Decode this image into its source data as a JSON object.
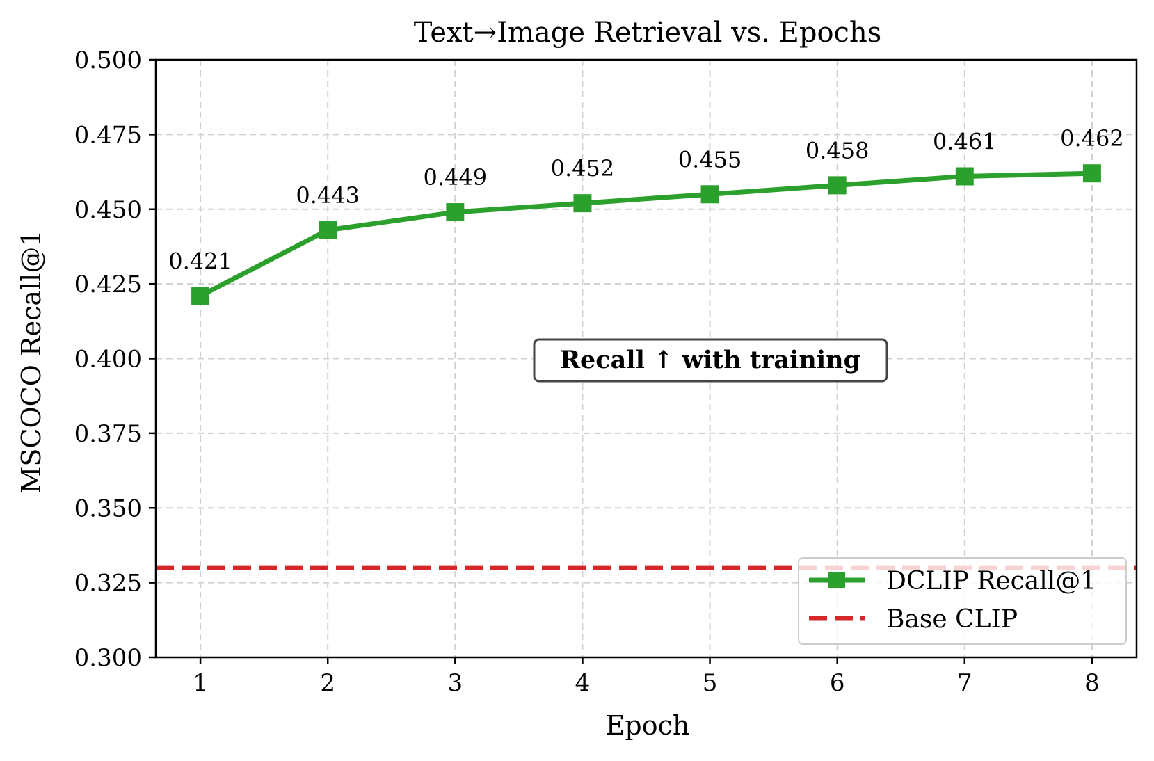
{
  "chart_data": {
    "type": "line",
    "title": "Text→Image Retrieval vs. Epochs",
    "xlabel": "Epoch",
    "ylabel": "MSCOCO Recall@1",
    "x": [
      1,
      2,
      3,
      4,
      5,
      6,
      7,
      8
    ],
    "x_tick_labels": [
      "1",
      "2",
      "3",
      "4",
      "5",
      "6",
      "7",
      "8"
    ],
    "xlim": [
      0.65,
      8.35
    ],
    "ylim": [
      0.3,
      0.5
    ],
    "y_ticks": [
      0.3,
      0.325,
      0.35,
      0.375,
      0.4,
      0.425,
      0.45,
      0.475,
      0.5
    ],
    "y_tick_labels": [
      "0.300",
      "0.325",
      "0.350",
      "0.375",
      "0.400",
      "0.425",
      "0.450",
      "0.475",
      "0.500"
    ],
    "grid": true,
    "series": [
      {
        "name": "DCLIP Recall@1",
        "color": "#2ca02c",
        "marker": "square",
        "values": [
          0.421,
          0.443,
          0.449,
          0.452,
          0.455,
          0.458,
          0.461,
          0.462
        ],
        "data_labels": [
          "0.421",
          "0.443",
          "0.449",
          "0.452",
          "0.455",
          "0.458",
          "0.461",
          "0.462"
        ]
      }
    ],
    "reference_lines": [
      {
        "name": "Base CLIP",
        "y": 0.33,
        "color": "#d62728",
        "style": "dashed"
      }
    ],
    "annotation": {
      "text": "Recall ↑ with training",
      "x": 5,
      "y": 0.4
    },
    "legend": {
      "position": "bottom-right",
      "entries": [
        "DCLIP Recall@1",
        "Base CLIP"
      ]
    }
  }
}
